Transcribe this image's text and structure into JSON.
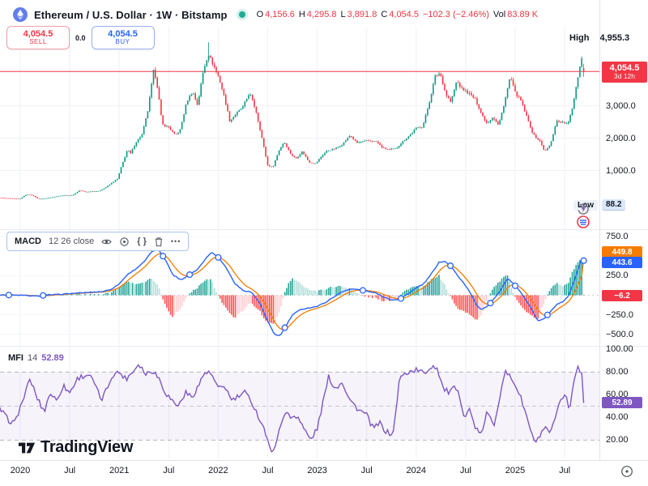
{
  "colors": {
    "up": "#089981",
    "down": "#f23645",
    "red": "#f23645",
    "macd_blue": "#2962ff",
    "signal_orange": "#f57c00",
    "hist_pos": "#26a69a",
    "hist_pos_light": "#b2dfdb",
    "hist_neg": "#ff5252",
    "hist_neg_light": "#ffcdd2",
    "mfi_purple": "#7e57c2",
    "grid": "#eef1f7",
    "axis_text": "#131722",
    "muted": "#787b86"
  },
  "header": {
    "symbol_title": "Ethereum / U.S. Dollar · 1W · Bitstamp",
    "ohlc": {
      "o_label": "O",
      "o": "4,156.6",
      "h_label": "H",
      "h": "4,295.8",
      "l_label": "L",
      "l": "3,891.8",
      "c_label": "C",
      "c": "4,054.5",
      "change": "−102.3 (−2.46%)",
      "vol_label": "Vol",
      "vol": "83.89 K"
    }
  },
  "trade_panel": {
    "sell_price": "4,054.5",
    "sell_label": "SELL",
    "spread": "0.0",
    "buy_price": "4,054.5",
    "buy_label": "BUY"
  },
  "main_chart": {
    "high_label": "High",
    "high_value": "4,955.3",
    "low_label": "Low",
    "low_value": "88.2",
    "price_tag_value": "4,054.5",
    "price_tag_countdown": "3d 12h",
    "y_ticks": [
      {
        "label": "3,000.0",
        "value": 3000
      },
      {
        "label": "2,000.0",
        "value": 2000
      },
      {
        "label": "1,000.0",
        "value": 1000
      }
    ]
  },
  "macd_panel": {
    "name": "MACD",
    "params": "12 26 close",
    "signal_tag": "449.8",
    "macd_tag": "443.6",
    "hist_tag": "−6.2",
    "source_label": "{ }",
    "more_label": "•••",
    "y_ticks": [
      {
        "label": "750.0",
        "value": 750
      },
      {
        "label": "250.0",
        "value": 250
      },
      {
        "label": "−250.0",
        "value": -250
      },
      {
        "label": "−500.0",
        "value": -500
      }
    ]
  },
  "mfi_panel": {
    "name": "MFI",
    "length": "14",
    "value": "52.89",
    "y_ticks": [
      {
        "label": "100.00",
        "value": 100
      },
      {
        "label": "80.00",
        "value": 80
      },
      {
        "label": "60.00",
        "value": 60
      },
      {
        "label": "40.00",
        "value": 40
      },
      {
        "label": "20.00",
        "value": 20
      }
    ]
  },
  "time_axis": {
    "ticks": [
      {
        "label": "2020",
        "m": 0
      },
      {
        "label": "Jul",
        "m": 6
      },
      {
        "label": "2021",
        "m": 12
      },
      {
        "label": "Jul",
        "m": 18
      },
      {
        "label": "2022",
        "m": 24
      },
      {
        "label": "Jul",
        "m": 30
      },
      {
        "label": "2023",
        "m": 36
      },
      {
        "label": "Jul",
        "m": 42
      },
      {
        "label": "2024",
        "m": 48
      },
      {
        "label": "Jul",
        "m": 54
      },
      {
        "label": "2025",
        "m": 60
      },
      {
        "label": "Jul",
        "m": 66
      }
    ]
  },
  "watermark": "TradingView",
  "chart_data": [
    {
      "type": "candlestick",
      "title": "Ethereum / U.S. Dollar, 1W, Bitstamp",
      "x_unit": "months_since_2020_01",
      "x_range": [
        -3,
        68.5
      ],
      "y_axis_ticks": [
        3000,
        2000,
        1000
      ],
      "series_high": 4955.3,
      "series_low": 88.2,
      "price_line": 4054.5,
      "last_candle": {
        "open": 4156.6,
        "high": 4295.8,
        "low": 3891.8,
        "close": 4054.5
      },
      "close_keyframes": [
        [
          -3,
          175
        ],
        [
          -2,
          150
        ],
        [
          -1,
          138
        ],
        [
          0,
          131
        ],
        [
          0.8,
          272
        ],
        [
          1.5,
          228
        ],
        [
          2.2,
          122
        ],
        [
          3,
          136
        ],
        [
          3.8,
          172
        ],
        [
          4.5,
          208
        ],
        [
          5.5,
          242
        ],
        [
          6.3,
          232
        ],
        [
          7.2,
          388
        ],
        [
          8,
          332
        ],
        [
          8.8,
          362
        ],
        [
          9.5,
          358
        ],
        [
          10.3,
          468
        ],
        [
          11,
          598
        ],
        [
          11.8,
          745
        ],
        [
          12.3,
          1150
        ],
        [
          13,
          1650
        ],
        [
          13.4,
          1520
        ],
        [
          14,
          1860
        ],
        [
          14.8,
          2120
        ],
        [
          15.5,
          2880
        ],
        [
          16.2,
          4150
        ],
        [
          16.7,
          3480
        ],
        [
          17.2,
          2420
        ],
        [
          18,
          2340
        ],
        [
          18.8,
          2080
        ],
        [
          19.4,
          2260
        ],
        [
          20.2,
          3140
        ],
        [
          20.9,
          3440
        ],
        [
          21.5,
          3010
        ],
        [
          22.2,
          4080
        ],
        [
          22.8,
          4610
        ],
        [
          23.4,
          4260
        ],
        [
          24.1,
          3860
        ],
        [
          24.8,
          3210
        ],
        [
          25.4,
          2520
        ],
        [
          26.2,
          2760
        ],
        [
          27,
          2960
        ],
        [
          27.8,
          3410
        ],
        [
          28.6,
          2820
        ],
        [
          29.3,
          2010
        ],
        [
          30,
          1160
        ],
        [
          30.6,
          1090
        ],
        [
          31.4,
          1640
        ],
        [
          32,
          1880
        ],
        [
          32.8,
          1510
        ],
        [
          33.4,
          1360
        ],
        [
          34.2,
          1590
        ],
        [
          35,
          1260
        ],
        [
          35.8,
          1215
        ],
        [
          36.6,
          1460
        ],
        [
          37.2,
          1615
        ],
        [
          38,
          1655
        ],
        [
          39,
          1795
        ],
        [
          40,
          2085
        ],
        [
          40.8,
          1855
        ],
        [
          41.6,
          1895
        ],
        [
          42.4,
          1925
        ],
        [
          43.2,
          1885
        ],
        [
          44,
          1685
        ],
        [
          44.8,
          1645
        ],
        [
          45.6,
          1685
        ],
        [
          46.4,
          1905
        ],
        [
          47.2,
          2085
        ],
        [
          48,
          2305
        ],
        [
          48.8,
          2355
        ],
        [
          49.6,
          3105
        ],
        [
          50.3,
          3905
        ],
        [
          50.9,
          4015
        ],
        [
          51.6,
          3355
        ],
        [
          52.2,
          3105
        ],
        [
          52.9,
          3755
        ],
        [
          53.6,
          3505
        ],
        [
          54.4,
          3385
        ],
        [
          55.2,
          3185
        ],
        [
          56,
          2705
        ],
        [
          56.6,
          2455
        ],
        [
          57.3,
          2655
        ],
        [
          58,
          2385
        ],
        [
          58.8,
          3205
        ],
        [
          59.4,
          3905
        ],
        [
          60,
          3405
        ],
        [
          60.7,
          3155
        ],
        [
          61.4,
          2655
        ],
        [
          62.2,
          2105
        ],
        [
          63,
          1905
        ],
        [
          63.6,
          1585
        ],
        [
          64.3,
          1805
        ],
        [
          65,
          2535
        ],
        [
          65.7,
          2485
        ],
        [
          66.4,
          2425
        ],
        [
          67,
          3005
        ],
        [
          67.5,
          3755
        ],
        [
          68,
          4405
        ],
        [
          68.3,
          4755
        ],
        [
          68.5,
          4054.5
        ]
      ]
    },
    {
      "type": "line+histogram",
      "title": "MACD 12 26 close",
      "y_axis_ticks": [
        750,
        250,
        -250,
        -500
      ],
      "last": {
        "macd": 443.6,
        "signal": 449.8,
        "hist": -6.2
      },
      "signal_ema_alpha": 0.22,
      "hist_scale": 2.2,
      "macd_keyframes": [
        [
          -3,
          5
        ],
        [
          0,
          0
        ],
        [
          2,
          -12
        ],
        [
          4,
          6
        ],
        [
          7,
          28
        ],
        [
          10,
          48
        ],
        [
          11,
          75
        ],
        [
          12,
          145
        ],
        [
          13,
          265
        ],
        [
          14,
          335
        ],
        [
          15,
          425
        ],
        [
          16,
          565
        ],
        [
          16.8,
          580
        ],
        [
          17.5,
          475
        ],
        [
          18.5,
          262
        ],
        [
          19.5,
          196
        ],
        [
          20.5,
          262
        ],
        [
          21.5,
          332
        ],
        [
          22.5,
          472
        ],
        [
          23.2,
          552
        ],
        [
          24,
          488
        ],
        [
          25,
          348
        ],
        [
          26,
          152
        ],
        [
          27,
          62
        ],
        [
          28,
          42
        ],
        [
          29,
          -92
        ],
        [
          30,
          -332
        ],
        [
          30.8,
          -498
        ],
        [
          31.5,
          -520
        ],
        [
          32.3,
          -378
        ],
        [
          33,
          -252
        ],
        [
          34,
          -182
        ],
        [
          35,
          -162
        ],
        [
          36,
          -142
        ],
        [
          37,
          -92
        ],
        [
          38,
          -22
        ],
        [
          39,
          42
        ],
        [
          40,
          82
        ],
        [
          41,
          72
        ],
        [
          42,
          52
        ],
        [
          43,
          32
        ],
        [
          44,
          -18
        ],
        [
          45,
          -58
        ],
        [
          46,
          -52
        ],
        [
          47,
          18
        ],
        [
          48,
          92
        ],
        [
          49,
          152
        ],
        [
          50,
          298
        ],
        [
          50.8,
          425
        ],
        [
          51.5,
          432
        ],
        [
          52.3,
          362
        ],
        [
          53,
          255
        ],
        [
          53.8,
          152
        ],
        [
          54.5,
          42
        ],
        [
          55.3,
          -122
        ],
        [
          55.9,
          -182
        ],
        [
          56.6,
          -142
        ],
        [
          57.3,
          -62
        ],
        [
          58,
          28
        ],
        [
          59.1,
          212
        ],
        [
          59.8,
          152
        ],
        [
          60.5,
          62
        ],
        [
          61.3,
          -58
        ],
        [
          62,
          -182
        ],
        [
          62.8,
          -332
        ],
        [
          63.5,
          -302
        ],
        [
          64.3,
          -202
        ],
        [
          65,
          -122
        ],
        [
          65.8,
          -82
        ],
        [
          66.5,
          -2
        ],
        [
          67.2,
          198
        ],
        [
          67.8,
          382
        ],
        [
          68.2,
          502
        ],
        [
          68.5,
          443.6
        ]
      ]
    },
    {
      "type": "line",
      "title": "MFI 14",
      "y_axis_ticks": [
        100,
        80,
        60,
        40,
        20
      ],
      "bands": [
        80,
        50,
        20
      ],
      "last": 52.89,
      "keyframes": [
        [
          -2.5,
          48
        ],
        [
          -1.5,
          38
        ],
        [
          -0.7,
          35
        ],
        [
          0.3,
          55
        ],
        [
          1.2,
          74
        ],
        [
          2,
          58
        ],
        [
          2.9,
          45
        ],
        [
          3.6,
          62
        ],
        [
          4.4,
          55
        ],
        [
          5.2,
          68
        ],
        [
          6,
          62
        ],
        [
          7,
          75
        ],
        [
          8.3,
          78
        ],
        [
          9,
          70
        ],
        [
          9.8,
          55
        ],
        [
          10.5,
          65
        ],
        [
          11.2,
          78
        ],
        [
          12,
          80
        ],
        [
          12.8,
          74
        ],
        [
          13.6,
          80
        ],
        [
          14.4,
          88
        ],
        [
          15.2,
          78
        ],
        [
          16,
          82
        ],
        [
          16.8,
          75
        ],
        [
          17.6,
          62
        ],
        [
          18.4,
          55
        ],
        [
          19.2,
          50
        ],
        [
          20,
          62
        ],
        [
          20.8,
          58
        ],
        [
          21.6,
          68
        ],
        [
          22.4,
          80
        ],
        [
          23.2,
          78
        ],
        [
          24,
          65
        ],
        [
          24.8,
          68
        ],
        [
          25.6,
          55
        ],
        [
          26.4,
          58
        ],
        [
          27.2,
          62
        ],
        [
          28,
          55
        ],
        [
          28.8,
          42
        ],
        [
          29.6,
          30
        ],
        [
          30.4,
          8
        ],
        [
          31.2,
          22
        ],
        [
          32,
          45
        ],
        [
          32.8,
          40
        ],
        [
          33.6,
          42
        ],
        [
          34.4,
          30
        ],
        [
          35.2,
          20
        ],
        [
          36,
          30
        ],
        [
          36.6,
          50
        ],
        [
          37.4,
          76
        ],
        [
          38.2,
          65
        ],
        [
          39,
          72
        ],
        [
          40,
          55
        ],
        [
          41,
          47
        ],
        [
          42,
          42
        ],
        [
          42.8,
          30
        ],
        [
          43.6,
          35
        ],
        [
          44.4,
          27
        ],
        [
          45.2,
          25
        ],
        [
          46,
          75
        ],
        [
          47,
          80
        ],
        [
          48,
          82
        ],
        [
          49,
          79
        ],
        [
          50,
          86
        ],
        [
          50.6,
          83
        ],
        [
          51.3,
          65
        ],
        [
          52,
          62
        ],
        [
          52.7,
          66
        ],
        [
          53.3,
          58
        ],
        [
          53.9,
          40
        ],
        [
          54.4,
          48
        ],
        [
          55.1,
          33
        ],
        [
          55.8,
          23
        ],
        [
          56.6,
          45
        ],
        [
          57.4,
          32
        ],
        [
          58.7,
          80
        ],
        [
          59.4,
          76
        ],
        [
          60.1,
          68
        ],
        [
          60.8,
          55
        ],
        [
          61.5,
          38
        ],
        [
          62.3,
          18
        ],
        [
          63,
          23
        ],
        [
          63.6,
          30
        ],
        [
          64.2,
          26
        ],
        [
          64.8,
          36
        ],
        [
          65.5,
          55
        ],
        [
          66.1,
          62
        ],
        [
          66.6,
          45
        ],
        [
          67.1,
          72
        ],
        [
          67.6,
          85
        ],
        [
          68,
          80
        ],
        [
          68.3,
          86
        ],
        [
          68.5,
          52.89
        ]
      ]
    }
  ]
}
